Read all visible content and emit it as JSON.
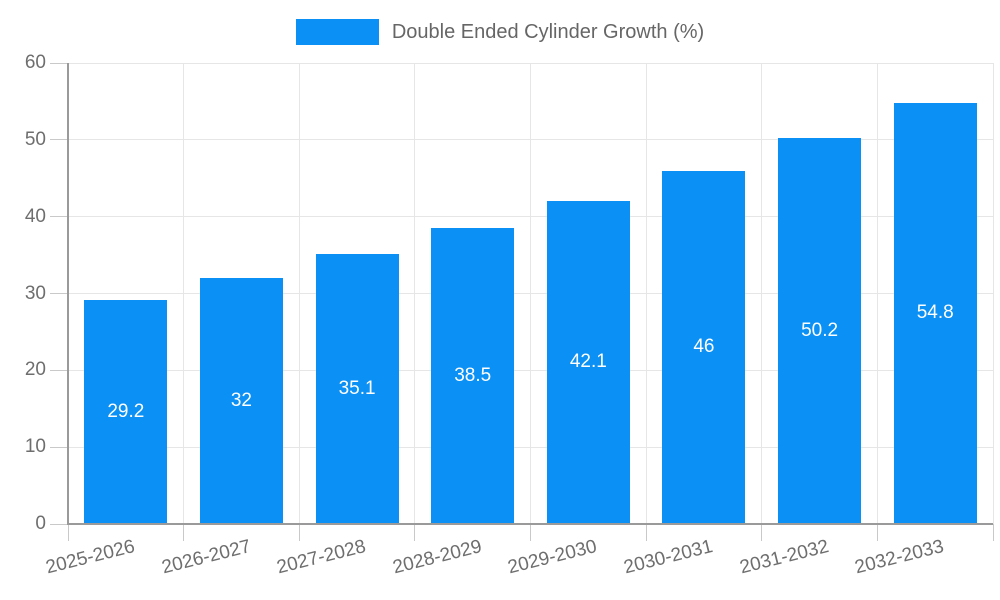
{
  "legend": {
    "label": "Double Ended Cylinder Growth (%)"
  },
  "chart_data": {
    "type": "bar",
    "title": "Double Ended Cylinder Growth (%)",
    "categories": [
      "2025-2026",
      "2026-2027",
      "2027-2028",
      "2028-2029",
      "2029-2030",
      "2030-2031",
      "2031-2032",
      "2032-2033"
    ],
    "values": [
      29.2,
      32,
      35.1,
      38.5,
      42.1,
      46,
      50.2,
      54.8
    ],
    "value_labels": [
      "29.2",
      "32",
      "35.1",
      "38.5",
      "42.1",
      "46",
      "50.2",
      "54.8"
    ],
    "xlabel": "",
    "ylabel": "",
    "ylim": [
      0,
      60
    ],
    "yticks": [
      0,
      10,
      20,
      30,
      40,
      50,
      60
    ],
    "grid": true,
    "legend_position": "top-center",
    "value_label_position": "inside-center"
  },
  "colors": {
    "bar": "#0b90f5",
    "value_label": "#ffffff",
    "gridline": "#e6e6e6",
    "tick_mark": "#c9c9c9",
    "axis_border": "#9a9a9a",
    "tick_text": "#6e6e6e",
    "legend_text": "#666666",
    "background": "#ffffff"
  }
}
